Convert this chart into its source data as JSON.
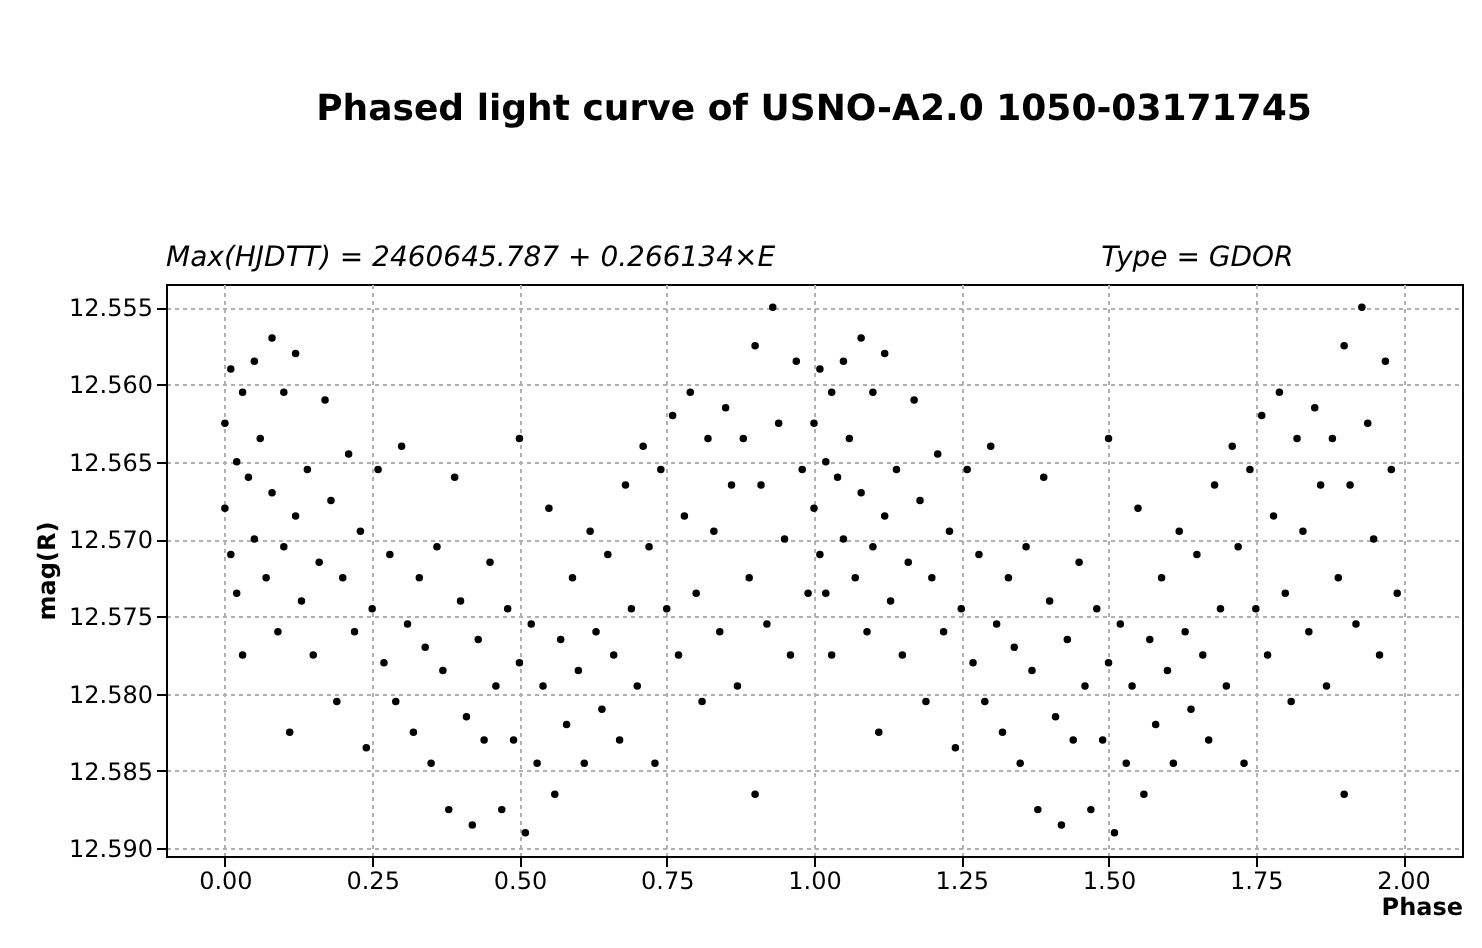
{
  "chart_data": {
    "type": "scatter",
    "title": "Phased light curve of USNO-A2.0 1050-03171745",
    "annotations": [
      "Max(HJDTT) = 2460645.787 + 0.266134×E",
      "Type = GDOR"
    ],
    "xlabel": "Phase",
    "ylabel": "mag(R)",
    "xlim": [
      -0.1,
      2.1
    ],
    "ylim": [
      12.5905,
      12.5535
    ],
    "xticks": [
      {
        "value": 0,
        "label": "0.00"
      },
      {
        "value": 0.25,
        "label": "0.25"
      },
      {
        "value": 0.5,
        "label": "0.50"
      },
      {
        "value": 0.75,
        "label": "0.75"
      },
      {
        "value": 1,
        "label": "1.00"
      },
      {
        "value": 1.25,
        "label": "1.25"
      },
      {
        "value": 1.5,
        "label": "1.50"
      },
      {
        "value": 1.75,
        "label": "1.75"
      },
      {
        "value": 2,
        "label": "2.00"
      }
    ],
    "yticks": [
      12.555,
      {
        "value": 12.56,
        "label": "12.560"
      },
      12.565,
      {
        "value": 12.57,
        "label": "12.570"
      },
      12.575,
      {
        "value": 12.58,
        "label": "12.580"
      },
      12.585,
      {
        "value": 12.59,
        "label": "12.590"
      }
    ],
    "grid": true,
    "marker": "circle",
    "series": [
      {
        "color": "#000000",
        "x": [
          0.0,
          0.0,
          0.01,
          0.01,
          0.02,
          0.02,
          0.03,
          0.03,
          0.04,
          0.05,
          0.05,
          0.06,
          0.07,
          0.08,
          0.08,
          0.09,
          0.1,
          0.1,
          0.11,
          0.12,
          0.12,
          0.13,
          0.14,
          0.15,
          0.16,
          0.17,
          0.18,
          0.19,
          0.2,
          0.21,
          0.22,
          0.23,
          0.24,
          0.25,
          0.26,
          0.27,
          0.28,
          0.29,
          0.3,
          0.31,
          0.32,
          0.33,
          0.34,
          0.35,
          0.36,
          0.37,
          0.38,
          0.39,
          0.4,
          0.41,
          0.42,
          0.43,
          0.44,
          0.45,
          0.46,
          0.47,
          0.48,
          0.49,
          0.5,
          0.5,
          0.51,
          0.52,
          0.53,
          0.54,
          0.55,
          0.56,
          0.57,
          0.58,
          0.59,
          0.6,
          0.61,
          0.62,
          0.63,
          0.64,
          0.65,
          0.66,
          0.67,
          0.68,
          0.69,
          0.7,
          0.71,
          0.72,
          0.73,
          0.74,
          0.75,
          0.76,
          0.77,
          0.78,
          0.79,
          0.8,
          0.81,
          0.82,
          0.83,
          0.84,
          0.85,
          0.86,
          0.87,
          0.88,
          0.89,
          0.9,
          0.9,
          0.91,
          0.92,
          0.93,
          0.94,
          0.95,
          0.96,
          0.97,
          0.98,
          0.99
        ],
        "values": [
          12.5625,
          12.568,
          12.559,
          12.571,
          12.5735,
          12.565,
          12.5605,
          12.5775,
          12.566,
          12.5585,
          12.57,
          12.5635,
          12.5725,
          12.557,
          12.567,
          12.576,
          12.5605,
          12.5705,
          12.5825,
          12.558,
          12.5685,
          12.574,
          12.5655,
          12.5775,
          12.5715,
          12.561,
          12.5675,
          12.5805,
          12.5725,
          12.5645,
          12.576,
          12.5695,
          12.5835,
          12.5745,
          12.5655,
          12.578,
          12.571,
          12.5805,
          12.564,
          12.5755,
          12.5825,
          12.5725,
          12.577,
          12.5845,
          12.5705,
          12.5785,
          12.5875,
          12.566,
          12.574,
          12.5815,
          12.5885,
          12.5765,
          12.583,
          12.5715,
          12.5795,
          12.5875,
          12.5745,
          12.583,
          12.5635,
          12.578,
          12.589,
          12.5755,
          12.5845,
          12.5795,
          12.568,
          12.5865,
          12.5765,
          12.582,
          12.5725,
          12.5785,
          12.5845,
          12.5695,
          12.576,
          12.581,
          12.571,
          12.5775,
          12.583,
          12.5665,
          12.5745,
          12.5795,
          12.564,
          12.5705,
          12.5845,
          12.5655,
          12.5745,
          12.562,
          12.5775,
          12.5685,
          12.5605,
          12.5735,
          12.5805,
          12.5635,
          12.5695,
          12.576,
          12.5615,
          12.5665,
          12.5795,
          12.5635,
          12.5725,
          12.5575,
          12.5865,
          12.5665,
          12.5755,
          12.555,
          12.5625,
          12.57,
          12.5775,
          12.5585,
          12.5655,
          12.5735
        ]
      },
      {
        "color": "#000000",
        "x": [
          1.0,
          1.0,
          1.01,
          1.01,
          1.02,
          1.02,
          1.03,
          1.03,
          1.04,
          1.05,
          1.05,
          1.06,
          1.07,
          1.08,
          1.08,
          1.09,
          1.1,
          1.1,
          1.11,
          1.12,
          1.12,
          1.13,
          1.14,
          1.15,
          1.16,
          1.17,
          1.18,
          1.19,
          1.2,
          1.21,
          1.22,
          1.23,
          1.24,
          1.25,
          1.26,
          1.27,
          1.28,
          1.29,
          1.3,
          1.31,
          1.32,
          1.33,
          1.34,
          1.35,
          1.36,
          1.37,
          1.38,
          1.39,
          1.4,
          1.41,
          1.42,
          1.43,
          1.44,
          1.45,
          1.46,
          1.47,
          1.48,
          1.49,
          1.5,
          1.5,
          1.51,
          1.52,
          1.53,
          1.54,
          1.55,
          1.56,
          1.57,
          1.58,
          1.59,
          1.6,
          1.61,
          1.62,
          1.63,
          1.64,
          1.65,
          1.66,
          1.67,
          1.68,
          1.69,
          1.7,
          1.71,
          1.72,
          1.73,
          1.74,
          1.75,
          1.76,
          1.77,
          1.78,
          1.79,
          1.8,
          1.81,
          1.82,
          1.83,
          1.84,
          1.85,
          1.86,
          1.87,
          1.88,
          1.89,
          1.9,
          1.9,
          1.91,
          1.92,
          1.93,
          1.94,
          1.95,
          1.96,
          1.97,
          1.98,
          1.99
        ],
        "values": [
          12.5625,
          12.568,
          12.559,
          12.571,
          12.5735,
          12.565,
          12.5605,
          12.5775,
          12.566,
          12.5585,
          12.57,
          12.5635,
          12.5725,
          12.557,
          12.567,
          12.576,
          12.5605,
          12.5705,
          12.5825,
          12.558,
          12.5685,
          12.574,
          12.5655,
          12.5775,
          12.5715,
          12.561,
          12.5675,
          12.5805,
          12.5725,
          12.5645,
          12.576,
          12.5695,
          12.5835,
          12.5745,
          12.5655,
          12.578,
          12.571,
          12.5805,
          12.564,
          12.5755,
          12.5825,
          12.5725,
          12.577,
          12.5845,
          12.5705,
          12.5785,
          12.5875,
          12.566,
          12.574,
          12.5815,
          12.5885,
          12.5765,
          12.583,
          12.5715,
          12.5795,
          12.5875,
          12.5745,
          12.583,
          12.5635,
          12.578,
          12.589,
          12.5755,
          12.5845,
          12.5795,
          12.568,
          12.5865,
          12.5765,
          12.582,
          12.5725,
          12.5785,
          12.5845,
          12.5695,
          12.576,
          12.581,
          12.571,
          12.5775,
          12.583,
          12.5665,
          12.5745,
          12.5795,
          12.564,
          12.5705,
          12.5845,
          12.5655,
          12.5745,
          12.562,
          12.5775,
          12.5685,
          12.5605,
          12.5735,
          12.5805,
          12.5635,
          12.5695,
          12.576,
          12.5615,
          12.5665,
          12.5795,
          12.5635,
          12.5725,
          12.5575,
          12.5865,
          12.5665,
          12.5755,
          12.555,
          12.5625,
          12.57,
          12.5775,
          12.5585,
          12.5655,
          12.5735
        ]
      }
    ]
  }
}
